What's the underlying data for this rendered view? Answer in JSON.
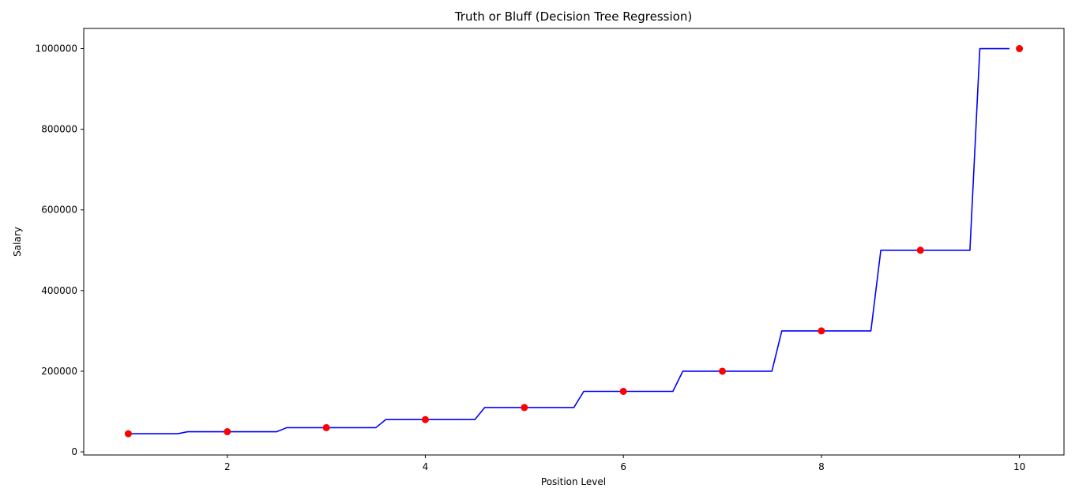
{
  "chart_data": {
    "type": "line+scatter",
    "title": "Truth or Bluff (Decision Tree Regression)",
    "xlabel": "Position Level",
    "ylabel": "Salary",
    "xlim": [
      0.55,
      10.45
    ],
    "ylim": [
      -7700,
      1050000
    ],
    "xticks": [
      2,
      4,
      6,
      8,
      10
    ],
    "xtick_labels": [
      "2",
      "4",
      "6",
      "8",
      "10"
    ],
    "yticks": [
      0,
      200000,
      400000,
      600000,
      800000,
      1000000
    ],
    "ytick_labels": [
      "0",
      "200000",
      "400000",
      "600000",
      "800000",
      "1000000"
    ],
    "grid": false,
    "series": [
      {
        "kind": "scatter",
        "color": "#ff0000",
        "x": [
          1,
          2,
          3,
          4,
          5,
          6,
          7,
          8,
          9,
          10
        ],
        "y": [
          45000,
          50000,
          60000,
          80000,
          110000,
          150000,
          200000,
          300000,
          500000,
          1000000
        ]
      },
      {
        "kind": "line",
        "color": "#0000ff",
        "x": [
          1.0,
          1.5,
          1.6,
          2.5,
          2.6,
          3.5,
          3.6,
          4.5,
          4.6,
          5.5,
          5.6,
          6.5,
          6.6,
          7.5,
          7.6,
          8.5,
          8.6,
          9.5,
          9.6,
          9.9
        ],
        "y": [
          45000,
          45000,
          50000,
          50000,
          60000,
          60000,
          80000,
          80000,
          110000,
          110000,
          150000,
          150000,
          200000,
          200000,
          300000,
          300000,
          500000,
          500000,
          1000000,
          1000000
        ]
      }
    ]
  }
}
